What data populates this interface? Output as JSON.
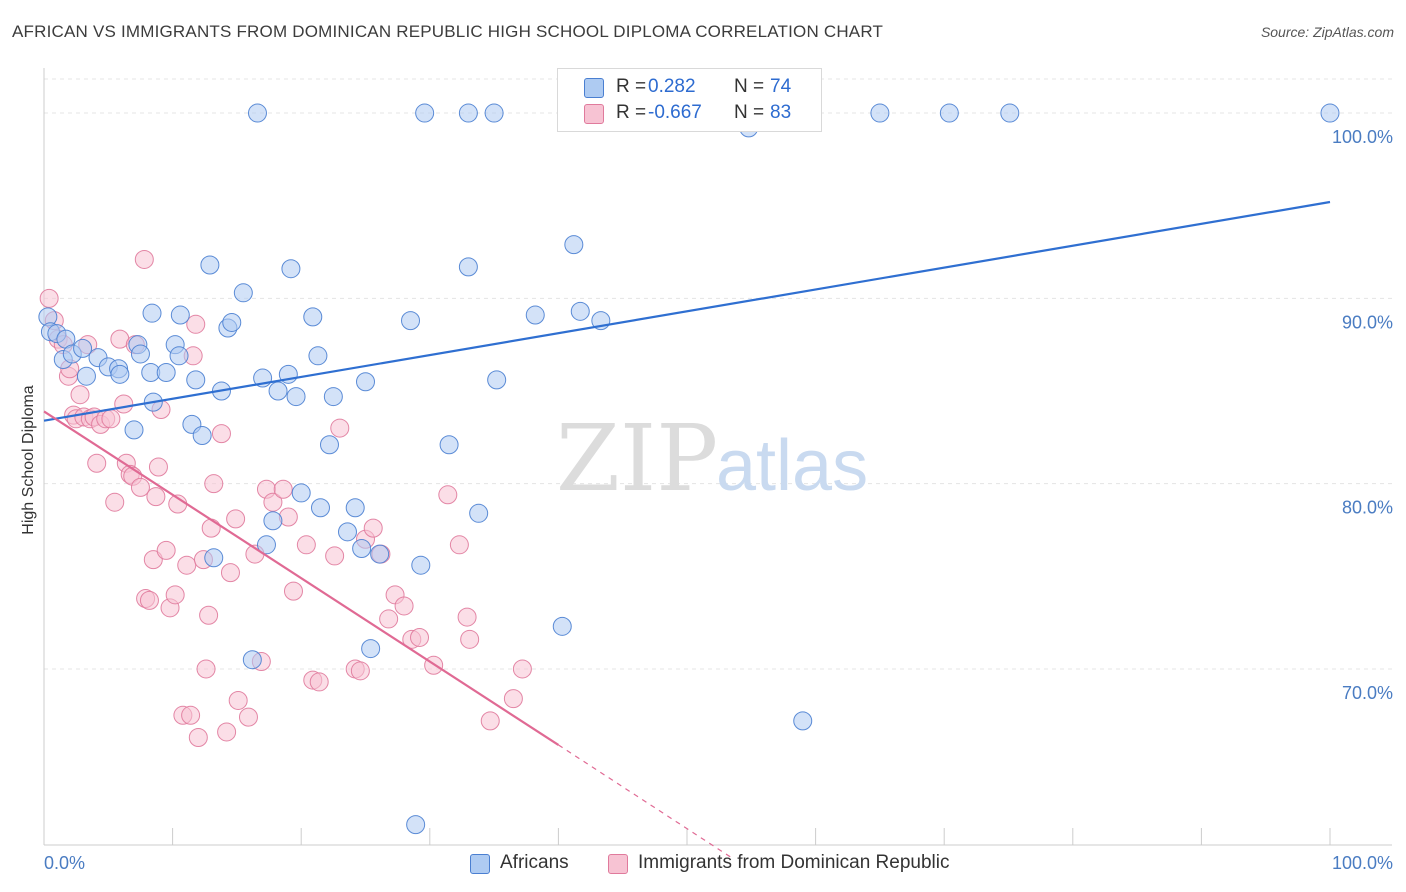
{
  "title": "AFRICAN VS IMMIGRANTS FROM DOMINICAN REPUBLIC HIGH SCHOOL DIPLOMA CORRELATION CHART",
  "source": "Source: ZipAtlas.com",
  "watermark": {
    "zip": "ZIP",
    "atlas": "atlas"
  },
  "legend": [
    {
      "r_label": "R =",
      "r_value": "0.282",
      "n_label": "N =",
      "n_value": "74"
    },
    {
      "r_label": "R =",
      "r_value": "-0.667",
      "n_label": "N =",
      "n_value": "83"
    }
  ],
  "colors": {
    "blue_fill": "#aecbf2",
    "blue_stroke": "#4a7fd1",
    "blue_line": "#2f6fd1",
    "pink_fill": "#f7c3d3",
    "pink_stroke": "#e07a9c",
    "pink_line": "#e06a94",
    "grid": "#e4e4e4",
    "tick_text": "#4a7cc2"
  },
  "chart_data": {
    "type": "scatter",
    "title": "AFRICAN VS IMMIGRANTS FROM DOMINICAN REPUBLIC HIGH SCHOOL DIPLOMA CORRELATION CHART",
    "xlabel": "",
    "ylabel": "High School Diploma",
    "xlim": [
      0,
      100
    ],
    "ylim": [
      60.5,
      102
    ],
    "x_tick_labels": [
      "0.0%",
      "100.0%"
    ],
    "y_ticks": [
      70,
      80,
      90,
      100
    ],
    "y_tick_labels": [
      "70.0%",
      "80.0%",
      "90.0%",
      "100.0%"
    ],
    "grid": true,
    "legend_position": "bottom",
    "series": [
      {
        "name": "Africans",
        "color": "blue",
        "trend": {
          "x": [
            0,
            100
          ],
          "y": [
            83.4,
            95.2
          ]
        },
        "points": [
          [
            0.3,
            89.0
          ],
          [
            0.5,
            88.2
          ],
          [
            1.0,
            88.1
          ],
          [
            1.5,
            86.7
          ],
          [
            1.7,
            87.8
          ],
          [
            2.2,
            87.0
          ],
          [
            3.0,
            87.3
          ],
          [
            3.3,
            85.8
          ],
          [
            4.2,
            86.8
          ],
          [
            5.0,
            86.3
          ],
          [
            5.8,
            86.2
          ],
          [
            5.9,
            85.9
          ],
          [
            7.0,
            82.9
          ],
          [
            7.3,
            87.5
          ],
          [
            7.5,
            87.0
          ],
          [
            8.3,
            86.0
          ],
          [
            8.4,
            89.2
          ],
          [
            8.5,
            84.4
          ],
          [
            9.5,
            86.0
          ],
          [
            10.2,
            87.5
          ],
          [
            10.5,
            86.9
          ],
          [
            10.6,
            89.1
          ],
          [
            11.5,
            83.2
          ],
          [
            11.8,
            85.6
          ],
          [
            12.3,
            82.6
          ],
          [
            12.9,
            91.8
          ],
          [
            13.2,
            76.0
          ],
          [
            13.8,
            85.0
          ],
          [
            14.3,
            88.4
          ],
          [
            14.6,
            88.7
          ],
          [
            15.5,
            90.3
          ],
          [
            16.2,
            70.5
          ],
          [
            16.6,
            100.0
          ],
          [
            17.0,
            85.7
          ],
          [
            17.3,
            76.7
          ],
          [
            17.8,
            78.0
          ],
          [
            18.2,
            85.0
          ],
          [
            19.0,
            85.9
          ],
          [
            19.2,
            91.6
          ],
          [
            19.6,
            84.7
          ],
          [
            20.0,
            79.5
          ],
          [
            20.9,
            89.0
          ],
          [
            21.3,
            86.9
          ],
          [
            21.5,
            78.7
          ],
          [
            22.2,
            82.1
          ],
          [
            22.5,
            84.7
          ],
          [
            23.6,
            77.4
          ],
          [
            24.2,
            78.7
          ],
          [
            24.7,
            76.5
          ],
          [
            25.0,
            85.5
          ],
          [
            25.4,
            71.1
          ],
          [
            26.1,
            76.2
          ],
          [
            28.5,
            88.8
          ],
          [
            28.9,
            61.6
          ],
          [
            29.3,
            75.6
          ],
          [
            29.6,
            100.0
          ],
          [
            31.5,
            82.1
          ],
          [
            33.0,
            100.0
          ],
          [
            33.0,
            91.7
          ],
          [
            33.8,
            78.4
          ],
          [
            35.0,
            100.0
          ],
          [
            35.2,
            85.6
          ],
          [
            38.2,
            89.1
          ],
          [
            40.3,
            72.3
          ],
          [
            41.2,
            92.9
          ],
          [
            41.7,
            89.3
          ],
          [
            43.3,
            88.8
          ],
          [
            45.2,
            100.0
          ],
          [
            54.8,
            99.2
          ],
          [
            59.0,
            67.2
          ],
          [
            65.0,
            100.0
          ],
          [
            70.4,
            100.0
          ],
          [
            75.1,
            100.0
          ],
          [
            100.0,
            100.0
          ]
        ]
      },
      {
        "name": "Immigrants from Dominican Republic",
        "color": "pink",
        "trend": {
          "x": [
            0,
            40
          ],
          "y": [
            83.9,
            65.9
          ]
        },
        "trend_dashed": {
          "x": [
            40,
            53.5
          ],
          "y": [
            65.9,
            59.8
          ]
        },
        "points": [
          [
            0.4,
            90.0
          ],
          [
            0.8,
            88.8
          ],
          [
            1.1,
            87.8
          ],
          [
            1.5,
            87.5
          ],
          [
            1.9,
            85.8
          ],
          [
            2.0,
            86.2
          ],
          [
            2.3,
            83.7
          ],
          [
            2.5,
            83.5
          ],
          [
            2.8,
            84.8
          ],
          [
            3.1,
            83.6
          ],
          [
            3.4,
            87.5
          ],
          [
            3.6,
            83.5
          ],
          [
            3.9,
            83.6
          ],
          [
            4.1,
            81.1
          ],
          [
            4.4,
            83.2
          ],
          [
            4.8,
            83.5
          ],
          [
            5.2,
            83.5
          ],
          [
            5.5,
            79.0
          ],
          [
            5.9,
            87.8
          ],
          [
            6.2,
            84.3
          ],
          [
            6.4,
            81.1
          ],
          [
            6.7,
            80.5
          ],
          [
            6.9,
            80.4
          ],
          [
            7.1,
            87.5
          ],
          [
            7.5,
            79.8
          ],
          [
            7.8,
            92.1
          ],
          [
            7.9,
            73.8
          ],
          [
            8.2,
            73.7
          ],
          [
            8.5,
            75.9
          ],
          [
            8.7,
            79.3
          ],
          [
            8.9,
            80.9
          ],
          [
            9.1,
            84.0
          ],
          [
            9.5,
            76.4
          ],
          [
            9.8,
            73.3
          ],
          [
            10.2,
            74.0
          ],
          [
            10.4,
            78.9
          ],
          [
            10.8,
            67.5
          ],
          [
            11.1,
            75.6
          ],
          [
            11.4,
            67.5
          ],
          [
            11.6,
            86.9
          ],
          [
            11.8,
            88.6
          ],
          [
            12.0,
            66.3
          ],
          [
            12.4,
            75.9
          ],
          [
            12.6,
            70.0
          ],
          [
            12.8,
            72.9
          ],
          [
            13.0,
            77.6
          ],
          [
            13.2,
            80.0
          ],
          [
            13.8,
            82.7
          ],
          [
            14.2,
            66.6
          ],
          [
            14.5,
            75.2
          ],
          [
            14.9,
            78.1
          ],
          [
            15.1,
            68.3
          ],
          [
            15.9,
            67.4
          ],
          [
            16.4,
            76.2
          ],
          [
            16.9,
            70.4
          ],
          [
            17.3,
            79.7
          ],
          [
            17.8,
            79.0
          ],
          [
            18.6,
            79.7
          ],
          [
            19.0,
            78.2
          ],
          [
            19.4,
            74.2
          ],
          [
            20.4,
            76.7
          ],
          [
            20.9,
            69.4
          ],
          [
            21.4,
            69.3
          ],
          [
            22.6,
            76.1
          ],
          [
            23.0,
            83.0
          ],
          [
            24.2,
            70.0
          ],
          [
            24.6,
            69.9
          ],
          [
            25.0,
            77.0
          ],
          [
            25.6,
            77.6
          ],
          [
            26.2,
            76.2
          ],
          [
            26.8,
            72.7
          ],
          [
            27.3,
            74.0
          ],
          [
            28.0,
            73.4
          ],
          [
            28.6,
            71.6
          ],
          [
            29.2,
            71.7
          ],
          [
            30.3,
            70.2
          ],
          [
            31.4,
            79.4
          ],
          [
            32.3,
            76.7
          ],
          [
            32.9,
            72.8
          ],
          [
            33.1,
            71.6
          ],
          [
            34.7,
            67.2
          ],
          [
            36.5,
            68.4
          ],
          [
            37.2,
            70.0
          ]
        ]
      }
    ]
  }
}
